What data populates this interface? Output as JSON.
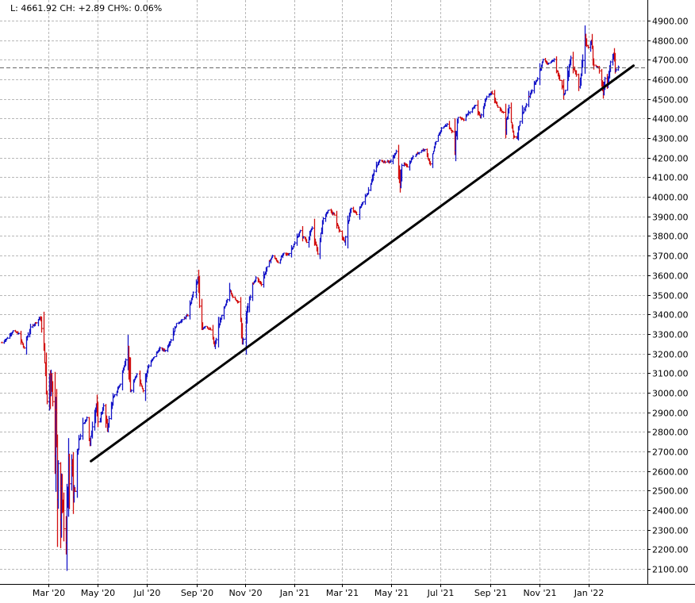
{
  "info_bar": {
    "text": "L: 4661.92 CH: +2.89 CH%: 0.06%"
  },
  "chart_data": {
    "type": "bar",
    "style": "ohlc",
    "title": "",
    "xlabel": "",
    "ylabel": "",
    "ylim": [
      2100,
      4900
    ],
    "xlim": [
      "2020-01-02",
      "2022-02-28"
    ],
    "grid": true,
    "colors": {
      "up": "#1515c8",
      "down": "#d20f0f",
      "trendline": "#000000",
      "last_price_line": "#666666"
    },
    "y_ticks": [
      "2100.00",
      "2200.00",
      "2300.00",
      "2400.00",
      "2500.00",
      "2600.00",
      "2700.00",
      "2800.00",
      "2900.00",
      "3000.00",
      "3100.00",
      "3200.00",
      "3300.00",
      "3400.00",
      "3500.00",
      "3600.00",
      "3700.00",
      "3800.00",
      "3900.00",
      "4000.00",
      "4100.00",
      "4200.00",
      "4300.00",
      "4400.00",
      "4500.00",
      "4600.00",
      "4700.00",
      "4800.00",
      "4900.00"
    ],
    "x_ticks": [
      {
        "label": "Mar '20",
        "date": "2020-03-01"
      },
      {
        "label": "May '20",
        "date": "2020-05-01"
      },
      {
        "label": "Jul '20",
        "date": "2020-07-01"
      },
      {
        "label": "Sep '20",
        "date": "2020-09-01"
      },
      {
        "label": "Nov '20",
        "date": "2020-11-01"
      },
      {
        "label": "Jan '21",
        "date": "2021-01-01"
      },
      {
        "label": "Mar '21",
        "date": "2021-03-01"
      },
      {
        "label": "May '21",
        "date": "2021-05-01"
      },
      {
        "label": "Jul '21",
        "date": "2021-07-01"
      },
      {
        "label": "Sep '21",
        "date": "2021-09-01"
      },
      {
        "label": "Nov '21",
        "date": "2021-11-01"
      },
      {
        "label": "Jan '22",
        "date": "2022-01-01"
      }
    ],
    "last_price": 4661.92,
    "trendline": {
      "start": [
        "2020-04-23",
        2650
      ],
      "end": [
        "2022-02-26",
        4670
      ]
    },
    "series": [
      {
        "values": [
          [
            "2020-01-03",
            3255
          ],
          [
            "2020-01-10",
            3280
          ],
          [
            "2020-01-17",
            3315
          ],
          [
            "2020-01-24",
            3300
          ],
          [
            "2020-01-31",
            3225
          ],
          [
            "2020-02-07",
            3330
          ],
          [
            "2020-02-14",
            3360
          ],
          [
            "2020-02-19",
            3385
          ],
          [
            "2020-02-21",
            3335
          ],
          [
            "2020-02-24",
            3225
          ],
          [
            "2020-02-25",
            3130
          ],
          [
            "2020-02-26",
            3115
          ],
          [
            "2020-02-27",
            2980
          ],
          [
            "2020-02-28",
            2955
          ],
          [
            "2020-03-02",
            3090
          ],
          [
            "2020-03-03",
            3000
          ],
          [
            "2020-03-04",
            3130
          ],
          [
            "2020-03-05",
            3025
          ],
          [
            "2020-03-06",
            2970
          ],
          [
            "2020-03-09",
            2745
          ],
          [
            "2020-03-10",
            2880
          ],
          [
            "2020-03-11",
            2740
          ],
          [
            "2020-03-12",
            2480
          ],
          [
            "2020-03-13",
            2710
          ],
          [
            "2020-03-16",
            2385
          ],
          [
            "2020-03-17",
            2530
          ],
          [
            "2020-03-18",
            2400
          ],
          [
            "2020-03-19",
            2410
          ],
          [
            "2020-03-20",
            2305
          ],
          [
            "2020-03-23",
            2235
          ],
          [
            "2020-03-24",
            2445
          ],
          [
            "2020-03-25",
            2475
          ],
          [
            "2020-03-26",
            2630
          ],
          [
            "2020-03-27",
            2540
          ],
          [
            "2020-03-30",
            2625
          ],
          [
            "2020-03-31",
            2585
          ],
          [
            "2020-04-01",
            2470
          ],
          [
            "2020-04-02",
            2525
          ],
          [
            "2020-04-03",
            2490
          ],
          [
            "2020-04-06",
            2665
          ],
          [
            "2020-04-08",
            2750
          ],
          [
            "2020-04-14",
            2845
          ],
          [
            "2020-04-17",
            2875
          ],
          [
            "2020-04-21",
            2735
          ],
          [
            "2020-04-24",
            2835
          ],
          [
            "2020-04-29",
            2940
          ],
          [
            "2020-05-01",
            2830
          ],
          [
            "2020-05-08",
            2930
          ],
          [
            "2020-05-13",
            2820
          ],
          [
            "2020-05-20",
            2970
          ],
          [
            "2020-05-29",
            3045
          ],
          [
            "2020-06-08",
            3230
          ],
          [
            "2020-06-11",
            3000
          ],
          [
            "2020-06-19",
            3100
          ],
          [
            "2020-06-26",
            3010
          ],
          [
            "2020-07-02",
            3130
          ],
          [
            "2020-07-10",
            3185
          ],
          [
            "2020-07-17",
            3225
          ],
          [
            "2020-07-24",
            3215
          ],
          [
            "2020-07-31",
            3270
          ],
          [
            "2020-08-07",
            3350
          ],
          [
            "2020-08-14",
            3370
          ],
          [
            "2020-08-21",
            3395
          ],
          [
            "2020-08-28",
            3510
          ],
          [
            "2020-09-02",
            3580
          ],
          [
            "2020-09-04",
            3425
          ],
          [
            "2020-09-08",
            3330
          ],
          [
            "2020-09-11",
            3340
          ],
          [
            "2020-09-18",
            3320
          ],
          [
            "2020-09-23",
            3235
          ],
          [
            "2020-09-30",
            3365
          ],
          [
            "2020-10-09",
            3475
          ],
          [
            "2020-10-12",
            3535
          ],
          [
            "2020-10-16",
            3485
          ],
          [
            "2020-10-23",
            3465
          ],
          [
            "2020-10-28",
            3270
          ],
          [
            "2020-10-30",
            3270
          ],
          [
            "2020-11-04",
            3445
          ],
          [
            "2020-11-09",
            3550
          ],
          [
            "2020-11-13",
            3585
          ],
          [
            "2020-11-20",
            3555
          ],
          [
            "2020-11-27",
            3640
          ],
          [
            "2020-12-04",
            3700
          ],
          [
            "2020-12-11",
            3665
          ],
          [
            "2020-12-18",
            3710
          ],
          [
            "2020-12-24",
            3705
          ],
          [
            "2020-12-31",
            3755
          ],
          [
            "2021-01-08",
            3825
          ],
          [
            "2021-01-15",
            3770
          ],
          [
            "2021-01-22",
            3840
          ],
          [
            "2021-01-27",
            3750
          ],
          [
            "2021-01-29",
            3715
          ],
          [
            "2021-02-05",
            3885
          ],
          [
            "2021-02-12",
            3935
          ],
          [
            "2021-02-19",
            3905
          ],
          [
            "2021-02-25",
            3830
          ],
          [
            "2021-03-04",
            3770
          ],
          [
            "2021-03-12",
            3945
          ],
          [
            "2021-03-19",
            3910
          ],
          [
            "2021-03-26",
            3975
          ],
          [
            "2021-04-01",
            4020
          ],
          [
            "2021-04-09",
            4130
          ],
          [
            "2021-04-16",
            4185
          ],
          [
            "2021-04-23",
            4180
          ],
          [
            "2021-04-30",
            4180
          ],
          [
            "2021-05-07",
            4230
          ],
          [
            "2021-05-12",
            4065
          ],
          [
            "2021-05-14",
            4175
          ],
          [
            "2021-05-21",
            4155
          ],
          [
            "2021-05-28",
            4205
          ],
          [
            "2021-06-04",
            4230
          ],
          [
            "2021-06-11",
            4245
          ],
          [
            "2021-06-18",
            4165
          ],
          [
            "2021-06-25",
            4280
          ],
          [
            "2021-07-02",
            4350
          ],
          [
            "2021-07-09",
            4370
          ],
          [
            "2021-07-16",
            4330
          ],
          [
            "2021-07-19",
            4260
          ],
          [
            "2021-07-23",
            4410
          ],
          [
            "2021-07-30",
            4395
          ],
          [
            "2021-08-06",
            4435
          ],
          [
            "2021-08-13",
            4470
          ],
          [
            "2021-08-19",
            4405
          ],
          [
            "2021-08-27",
            4510
          ],
          [
            "2021-09-02",
            4535
          ],
          [
            "2021-09-10",
            4460
          ],
          [
            "2021-09-17",
            4430
          ],
          [
            "2021-09-20",
            4360
          ],
          [
            "2021-09-24",
            4455
          ],
          [
            "2021-09-30",
            4310
          ],
          [
            "2021-10-04",
            4300
          ],
          [
            "2021-10-08",
            4390
          ],
          [
            "2021-10-15",
            4470
          ],
          [
            "2021-10-22",
            4545
          ],
          [
            "2021-10-29",
            4605
          ],
          [
            "2021-11-05",
            4700
          ],
          [
            "2021-11-12",
            4680
          ],
          [
            "2021-11-19",
            4700
          ],
          [
            "2021-11-26",
            4595
          ],
          [
            "2021-11-30",
            4565
          ],
          [
            "2021-12-01",
            4515
          ],
          [
            "2021-12-03",
            4540
          ],
          [
            "2021-12-10",
            4710
          ],
          [
            "2021-12-17",
            4620
          ],
          [
            "2021-12-20",
            4570
          ],
          [
            "2021-12-27",
            4790
          ],
          [
            "2021-12-31",
            4765
          ],
          [
            "2022-01-04",
            4795
          ],
          [
            "2022-01-07",
            4675
          ],
          [
            "2022-01-13",
            4660
          ],
          [
            "2022-01-14",
            4640
          ],
          [
            "2022-01-19",
            4530
          ],
          [
            "2022-01-21",
            4600
          ],
          [
            "2022-01-24",
            4575
          ],
          [
            "2022-01-26",
            4620
          ],
          [
            "2022-01-28",
            4700
          ],
          [
            "2022-02-01",
            4740
          ],
          [
            "2022-02-03",
            4650
          ],
          [
            "2022-02-07",
            4661.92
          ]
        ]
      }
    ]
  }
}
